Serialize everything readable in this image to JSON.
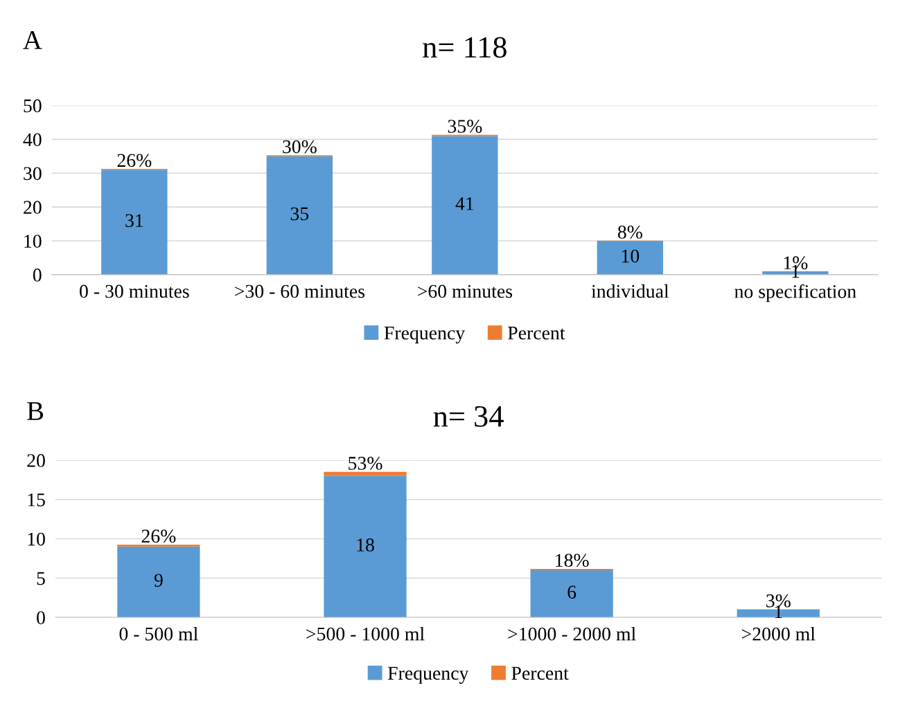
{
  "chart_data": [
    {
      "type": "bar",
      "title": "n= 118",
      "annotations": [
        "A"
      ],
      "categories": [
        "0 - 30 minutes",
        ">30 - 60 minutes",
        ">60 minutes",
        "individual",
        "no specification"
      ],
      "stacked": true,
      "ylim": [
        0,
        50
      ],
      "yticks": [
        0,
        10,
        20,
        30,
        40,
        50
      ],
      "grid": "y",
      "legend": "bottom",
      "series": [
        {
          "name": "Frequency",
          "color": "#5b9bd5",
          "values": [
            31,
            35,
            41,
            10,
            1
          ],
          "value_labels": [
            "31",
            "35",
            "41",
            "10",
            "1"
          ]
        },
        {
          "name": "Percent",
          "color": "#ed7d31",
          "values": [
            0.26,
            0.3,
            0.35,
            0.08,
            0.01
          ],
          "value_labels": [
            "26%",
            "30%",
            "35%",
            "8%",
            "1%"
          ]
        }
      ]
    },
    {
      "type": "bar",
      "title": "n= 34",
      "annotations": [
        "B"
      ],
      "categories": [
        "0 - 500 ml",
        ">500 - 1000 ml",
        ">1000 - 2000 ml",
        ">2000 ml"
      ],
      "stacked": true,
      "ylim": [
        0,
        20
      ],
      "yticks": [
        0,
        5,
        10,
        15,
        20
      ],
      "grid": "y",
      "legend": "bottom",
      "series": [
        {
          "name": "Frequency",
          "color": "#5b9bd5",
          "values": [
            9,
            18,
            6,
            1
          ],
          "value_labels": [
            "9",
            "18",
            "6",
            "1"
          ]
        },
        {
          "name": "Percent",
          "color": "#ed7d31",
          "values": [
            0.26,
            0.53,
            0.18,
            0.03
          ],
          "value_labels": [
            "26%",
            "53%",
            "18%",
            "3%"
          ]
        }
      ]
    }
  ]
}
